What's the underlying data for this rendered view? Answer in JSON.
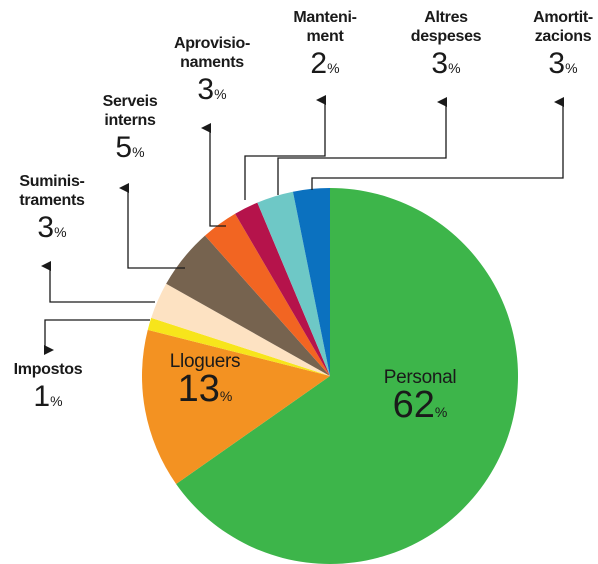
{
  "chart_data": {
    "type": "pie",
    "categories": [
      "Personal",
      "Lloguers",
      "Impostos",
      "Suminis-\ntraments",
      "Serveis\ninterns",
      "Aprovisio-\nnaments",
      "Manteni-\nment",
      "Altres\ndespeses",
      "Amortit-\nzacions"
    ],
    "values": [
      62,
      13,
      1,
      3,
      5,
      3,
      2,
      3,
      3
    ],
    "unit": "%",
    "colors": [
      "#3db54a",
      "#f39222",
      "#f7e51b",
      "#fde2c2",
      "#76634f",
      "#f26522",
      "#b5134b",
      "#6ec8c6",
      "#0b71bf"
    ]
  }
}
